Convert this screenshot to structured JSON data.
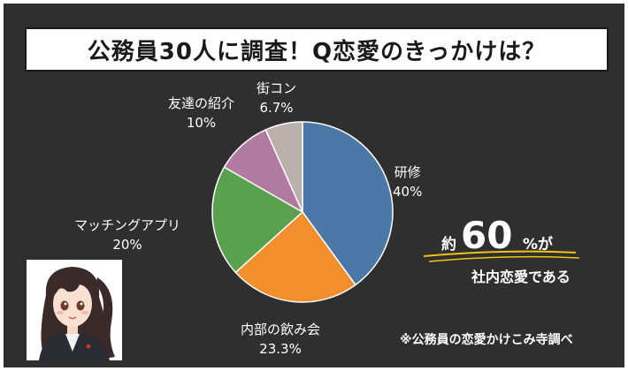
{
  "title": "公務員30人に調査！Q恋愛のきっかけは？",
  "chart_data": {
    "type": "pie",
    "slices": [
      {
        "label": "研修",
        "value": 40,
        "value_label": "40%",
        "color": "#4c78a8"
      },
      {
        "label": "内部の飲み会",
        "value": 23.3,
        "value_label": "23.3%",
        "color": "#f28e2b"
      },
      {
        "label": "マッチングアプリ",
        "value": 20,
        "value_label": "20%",
        "color": "#59a14f"
      },
      {
        "label": "友達の紹介",
        "value": 10,
        "value_label": "10%",
        "color": "#b07aa1"
      },
      {
        "label": "街コン",
        "value": 6.7,
        "value_label": "6.7%",
        "color": "#bab0ac"
      }
    ],
    "start_angle_deg": 90,
    "direction": "clockwise"
  },
  "callout": {
    "prefix": "約",
    "number": "60",
    "suffix": "%が",
    "line2": "社内恋愛である",
    "underline_color": "#f1c40f"
  },
  "source": "※公務員の恋愛かけこみ寺調べ",
  "colors": {
    "background": "#2f2f2f",
    "border": "#ffffff"
  }
}
